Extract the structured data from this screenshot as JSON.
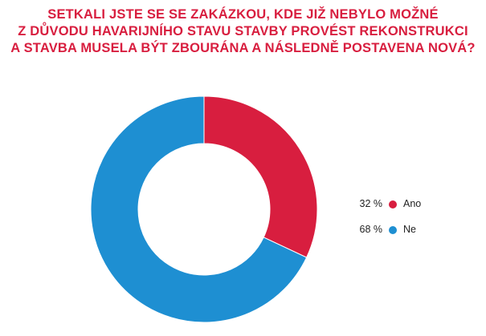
{
  "chart_data": {
    "type": "pie",
    "donut": true,
    "title_lines": [
      "SETKALI JSTE SE SE ZAKÁZKOU, KDE JIŽ NEBYLO MOŽNÉ",
      "Z DŮVODU HAVARIJNÍHO STAVU STAVBY PROVÉST REKONSTRUKCI",
      "A STAVBA MUSELA BÝT ZBOURÁNA A NÁSLEDNĚ POSTAVENA NOVÁ?"
    ],
    "categories": [
      "Ano",
      "Ne"
    ],
    "values": [
      32,
      68
    ],
    "value_labels": [
      "32 %",
      "68 %"
    ],
    "colors": [
      "#d81e3f",
      "#1e8fd2"
    ],
    "legend_position": "right"
  }
}
